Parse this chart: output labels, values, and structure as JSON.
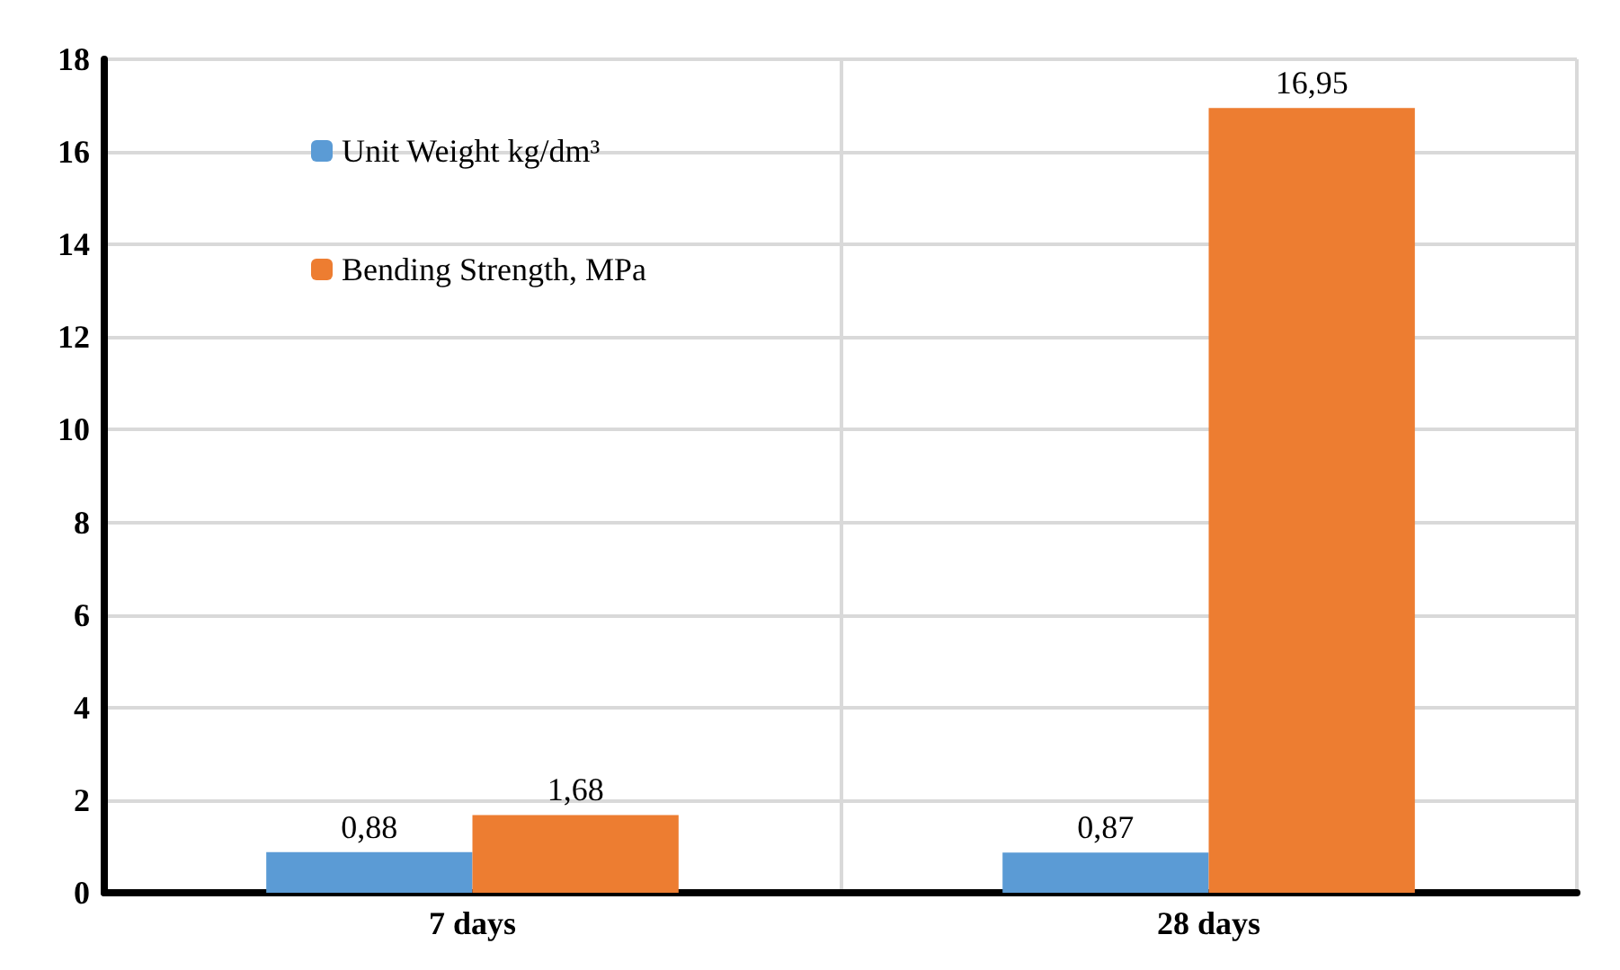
{
  "chart_data": {
    "type": "bar",
    "categories": [
      "7 days",
      "28 days"
    ],
    "series": [
      {
        "name": "Unit Weight kg/dm³",
        "color": "#5b9bd5",
        "values": [
          0.88,
          0.87
        ],
        "value_labels": [
          "0,88",
          "0,87"
        ]
      },
      {
        "name": "Bending Strength, MPa",
        "color": "#ed7d31",
        "values": [
          1.68,
          16.95
        ],
        "value_labels": [
          "1,68",
          "16,95"
        ]
      }
    ],
    "ylim": [
      0,
      18
    ],
    "yticks": [
      0,
      2,
      4,
      6,
      8,
      10,
      12,
      14,
      16,
      18
    ],
    "grid": true,
    "legend": "top left"
  }
}
